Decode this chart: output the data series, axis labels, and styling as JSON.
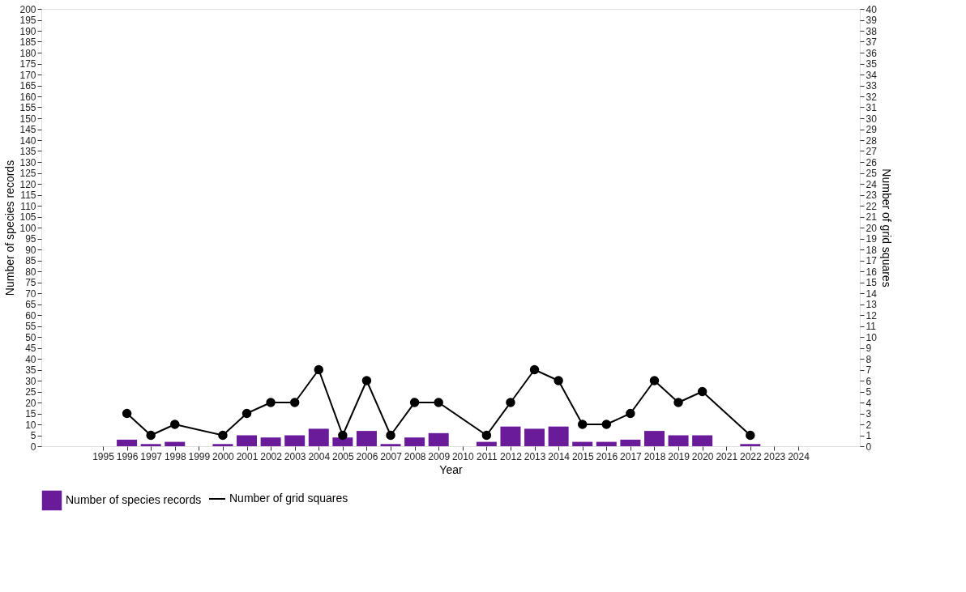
{
  "chart_data": {
    "type": "bar",
    "xlabel": "Year",
    "ylabel": "Number of species records",
    "y2label": "Number of grid squares",
    "x": [
      1996,
      1997,
      1998,
      2000,
      2001,
      2002,
      2003,
      2004,
      2005,
      2006,
      2007,
      2008,
      2009,
      2011,
      2012,
      2013,
      2014,
      2015,
      2016,
      2017,
      2018,
      2019,
      2020,
      2022
    ],
    "series": [
      {
        "name": "Number of species records",
        "color": "#6a1b9a",
        "values": [
          3,
          1,
          2,
          1,
          5,
          4,
          5,
          8,
          4,
          7,
          1,
          4,
          6,
          2,
          9,
          8,
          9,
          2,
          2,
          3,
          7,
          5,
          5,
          1
        ]
      },
      {
        "name": "Number of grid squares",
        "type": "line",
        "axis": "y2",
        "color": "#000000",
        "marker": "circle",
        "values": [
          3,
          1,
          2,
          1,
          3,
          4,
          4,
          7,
          1,
          6,
          1,
          4,
          4,
          1,
          4,
          7,
          6,
          2,
          2,
          3,
          6,
          4,
          5,
          1
        ]
      }
    ],
    "xlim": [
      1992.6,
      2026.4
    ],
    "xticks": [
      1995,
      1996,
      1997,
      1998,
      1999,
      2000,
      2001,
      2002,
      2003,
      2004,
      2005,
      2006,
      2007,
      2008,
      2009,
      2010,
      2011,
      2012,
      2013,
      2014,
      2015,
      2016,
      2017,
      2018,
      2019,
      2020,
      2021,
      2022,
      2023,
      2024
    ],
    "ylim": [
      0,
      200
    ],
    "yticks": [
      0,
      5,
      10,
      15,
      20,
      25,
      30,
      35,
      40,
      45,
      50,
      55,
      60,
      65,
      70,
      75,
      80,
      85,
      90,
      95,
      100,
      105,
      110,
      115,
      120,
      125,
      130,
      135,
      140,
      145,
      150,
      155,
      160,
      165,
      170,
      175,
      180,
      185,
      190,
      195,
      200
    ],
    "y2lim": [
      0,
      40
    ],
    "y2ticks": [
      0,
      1,
      2,
      3,
      4,
      5,
      6,
      7,
      8,
      9,
      10,
      11,
      12,
      13,
      14,
      15,
      16,
      17,
      18,
      19,
      20,
      21,
      22,
      23,
      24,
      25,
      26,
      27,
      28,
      29,
      30,
      31,
      32,
      33,
      34,
      35,
      36,
      37,
      38,
      39,
      40
    ],
    "grid": false,
    "legend": "bottom"
  }
}
